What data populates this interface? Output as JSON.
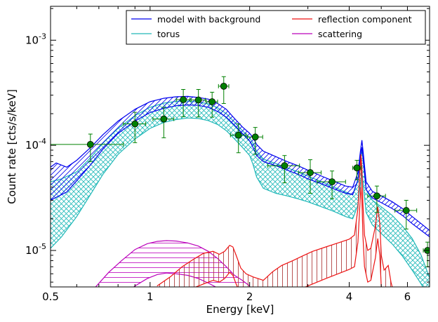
{
  "chart_data": {
    "type": "line",
    "xlabel": "Energy [keV]",
    "ylabel": "Count rate [cts/s/keV]",
    "xscale": "log",
    "yscale": "log",
    "xlim": [
      0.5,
      7.0
    ],
    "ylim": [
      4.5e-06,
      0.0021
    ],
    "xticks": [
      {
        "value": 0.5,
        "label": "0.5"
      },
      {
        "value": 1,
        "label": "1"
      },
      {
        "value": 2,
        "label": "2"
      },
      {
        "value": 4,
        "label": "4"
      },
      {
        "value": 6,
        "label": "6"
      }
    ],
    "yticks": [
      {
        "value": 1e-05,
        "base": "10",
        "exp": "-5"
      },
      {
        "value": 0.0001,
        "base": "10",
        "exp": "-4"
      },
      {
        "value": 0.001,
        "base": "10",
        "exp": "-3"
      }
    ],
    "legend": {
      "placement": "top-right",
      "columns": 2,
      "entries": [
        {
          "label": "model with background",
          "color": "#0000ee"
        },
        {
          "label": "torus",
          "color": "#20b8b8"
        },
        {
          "label": "reflection component",
          "color": "#ee1111"
        },
        {
          "label": "scattering",
          "color": "#bb00bb"
        }
      ]
    },
    "data_points": {
      "color": "#008000",
      "points": [
        {
          "x": 0.66,
          "y": 0.000102,
          "xerr": [
            0.16,
            0.17
          ],
          "yerr": [
            3.2e-05,
            2.6e-05
          ]
        },
        {
          "x": 0.9,
          "y": 0.00016,
          "xerr": [
            0.07,
            0.07
          ],
          "yerr": [
            5.4e-05,
            4.6e-05
          ]
        },
        {
          "x": 1.1,
          "y": 0.000178,
          "xerr": [
            0.08,
            0.08
          ],
          "yerr": [
            6e-05,
            5.2e-05
          ]
        },
        {
          "x": 1.26,
          "y": 0.000272,
          "xerr": [
            0.06,
            0.06
          ],
          "yerr": [
            8.5e-05,
            6.8e-05
          ]
        },
        {
          "x": 1.4,
          "y": 0.00027,
          "xerr": [
            0.07,
            0.07
          ],
          "yerr": [
            8.4e-05,
            7e-05
          ]
        },
        {
          "x": 1.54,
          "y": 0.00026,
          "xerr": [
            0.06,
            0.06
          ],
          "yerr": [
            7.5e-05,
            6e-05
          ]
        },
        {
          "x": 1.67,
          "y": 0.000365,
          "xerr": [
            0.06,
            0.06
          ],
          "yerr": [
            0.000115,
            8.5e-05
          ]
        },
        {
          "x": 1.85,
          "y": 0.000125,
          "xerr": [
            0.1,
            0.1
          ],
          "yerr": [
            4e-05,
            3.5e-05
          ]
        },
        {
          "x": 2.08,
          "y": 0.00012,
          "xerr": [
            0.11,
            0.11
          ],
          "yerr": [
            3.8e-05,
            2.8e-05
          ]
        },
        {
          "x": 2.55,
          "y": 6.4e-05,
          "xerr": [
            0.28,
            0.28
          ],
          "yerr": [
            2e-05,
            1.6e-05
          ]
        },
        {
          "x": 3.05,
          "y": 5.5e-05,
          "xerr": [
            0.24,
            0.24
          ],
          "yerr": [
            2e-05,
            1.8e-05
          ]
        },
        {
          "x": 3.55,
          "y": 4.5e-05,
          "xerr": [
            0.35,
            0.35
          ],
          "yerr": [
            1.4e-05,
            1.2e-05
          ]
        },
        {
          "x": 4.22,
          "y": 6.1e-05,
          "xerr": [
            0.12,
            0.12
          ],
          "yerr": [
            1.4e-05,
            1.1e-05
          ]
        },
        {
          "x": 4.85,
          "y": 3.3e-05,
          "xerr": [
            0.3,
            0.3
          ],
          "yerr": [
            1e-05,
            8e-06
          ]
        },
        {
          "x": 5.95,
          "y": 2.4e-05,
          "xerr": [
            0.45,
            0.45
          ],
          "yerr": [
            8e-06,
            6e-06
          ]
        },
        {
          "x": 6.9,
          "y": 1e-05,
          "xerr": [
            0.2,
            0.2
          ],
          "yerr": [
            3e-06,
            2e-06
          ]
        }
      ]
    },
    "series": [
      {
        "name": "model with background",
        "color": "#0000ee",
        "band": true,
        "x": [
          0.5,
          0.52,
          0.56,
          0.6,
          0.66,
          0.72,
          0.8,
          0.9,
          1.0,
          1.1,
          1.2,
          1.3,
          1.4,
          1.5,
          1.6,
          1.7,
          1.8,
          1.9,
          2.0,
          2.05,
          2.1,
          2.2,
          2.4,
          2.6,
          2.8,
          3.0,
          3.3,
          3.6,
          3.9,
          4.1,
          4.25,
          4.32,
          4.37,
          4.42,
          4.5,
          4.7,
          5.0,
          5.4,
          5.8,
          6.2,
          6.6,
          7.0
        ],
        "upper": [
          6.2e-05,
          6.8e-05,
          6.2e-05,
          7.2e-05,
          9.5e-05,
          0.000126,
          0.00017,
          0.00022,
          0.00026,
          0.00028,
          0.00029,
          0.000292,
          0.000285,
          0.000275,
          0.00025,
          0.00022,
          0.00018,
          0.00015,
          0.00013,
          0.000118,
          0.000102,
          8.8e-05,
          7.8e-05,
          7e-05,
          6.4e-05,
          5.8e-05,
          5.1e-05,
          4.55e-05,
          4.1e-05,
          4e-05,
          5.5e-05,
          8.5e-05,
          0.000112,
          8e-05,
          4.5e-05,
          3.65e-05,
          3.3e-05,
          2.9e-05,
          2.5e-05,
          2.1e-05,
          1.8e-05,
          1.55e-05
        ],
        "lower": [
          3e-05,
          3.2e-05,
          3.6e-05,
          4.6e-05,
          6.5e-05,
          9.2e-05,
          0.00013,
          0.00017,
          0.000205,
          0.000225,
          0.000238,
          0.000242,
          0.00024,
          0.00023,
          0.00021,
          0.000185,
          0.000155,
          0.00013,
          0.00011,
          9.5e-05,
          8e-05,
          7e-05,
          6.4e-05,
          5.8e-05,
          5.3e-05,
          4.8e-05,
          4.3e-05,
          3.85e-05,
          3.5e-05,
          3.4e-05,
          4.7e-05,
          7.3e-05,
          9.6e-05,
          6.8e-05,
          3.8e-05,
          3.15e-05,
          2.85e-05,
          2.5e-05,
          2.15e-05,
          1.8e-05,
          1.55e-05,
          1.35e-05
        ]
      },
      {
        "name": "torus",
        "color": "#20b8b8",
        "band": true,
        "x": [
          0.5,
          0.54,
          0.6,
          0.66,
          0.72,
          0.8,
          0.9,
          1.0,
          1.1,
          1.2,
          1.3,
          1.4,
          1.5,
          1.6,
          1.7,
          1.8,
          1.9,
          2.0,
          2.05,
          2.1,
          2.2,
          2.4,
          2.6,
          2.8,
          3.0,
          3.3,
          3.6,
          3.9,
          4.1,
          4.25,
          4.32,
          4.37,
          4.42,
          4.5,
          4.7,
          5.0,
          5.4,
          5.8,
          6.2,
          6.6,
          7.0
        ],
        "upper": [
          4.5e-05,
          4.8e-05,
          5.6e-05,
          7.6e-05,
          0.000105,
          0.000145,
          0.000192,
          0.00023,
          0.000252,
          0.000262,
          0.000264,
          0.000258,
          0.000248,
          0.000228,
          0.0002,
          0.000166,
          0.000138,
          0.000118,
          0.000104,
          8.8e-05,
          7.4e-05,
          6.7e-05,
          6.1e-05,
          5.6e-05,
          5.1e-05,
          4.5e-05,
          4e-05,
          3.6e-05,
          3.4e-05,
          4.6e-05,
          7e-05,
          9.2e-05,
          6.6e-05,
          3.8e-05,
          3e-05,
          2.6e-05,
          2.15e-05,
          1.7e-05,
          1.3e-05,
          9e-06,
          5.5e-06
        ],
        "lower": [
          1.05e-05,
          1.35e-05,
          2.1e-05,
          3.4e-05,
          5.3e-05,
          8.2e-05,
          0.000115,
          0.000145,
          0.000165,
          0.000176,
          0.000182,
          0.00018,
          0.000172,
          0.000158,
          0.000138,
          0.000115,
          9.6e-05,
          8e-05,
          6.5e-05,
          5e-05,
          3.9e-05,
          3.5e-05,
          3.3e-05,
          3.1e-05,
          2.9e-05,
          2.6e-05,
          2.35e-05,
          2.1e-05,
          2e-05,
          2.7e-05,
          4.2e-05,
          5.6e-05,
          4e-05,
          2.3e-05,
          1.75e-05,
          1.45e-05,
          1.15e-05,
          8.8e-06,
          6.5e-06,
          4.8e-06,
          3.5e-06
        ]
      },
      {
        "name": "reflection component",
        "color": "#ee1111",
        "band": true,
        "x": [
          1.05,
          1.15,
          1.25,
          1.35,
          1.45,
          1.55,
          1.62,
          1.68,
          1.74,
          1.78,
          1.82,
          1.88,
          1.95,
          2.05,
          2.2,
          2.35,
          2.5,
          2.7,
          2.9,
          3.1,
          3.4,
          3.7,
          4.0,
          4.15,
          4.25,
          4.3,
          4.34,
          4.37,
          4.4,
          4.45,
          4.55,
          4.65,
          4.8,
          4.88,
          4.95,
          5.0,
          5.1,
          5.25,
          5.35,
          5.45,
          5.6
        ],
        "upper": [
          4.6e-06,
          5.6e-06,
          7e-06,
          8.2e-06,
          9.4e-06,
          9.8e-06,
          9.2e-06,
          9.8e-06,
          1.12e-05,
          1.08e-05,
          9e-06,
          6.8e-06,
          6e-06,
          5.6e-06,
          5.2e-06,
          6.3e-06,
          7.2e-06,
          8e-06,
          8.9e-06,
          9.8e-06,
          1.08e-05,
          1.18e-05,
          1.28e-05,
          1.4e-05,
          2.5e-05,
          5e-05,
          8.2e-05,
          6e-05,
          2.8e-05,
          1.4e-05,
          1e-05,
          1.05e-05,
          1.7e-05,
          2.6e-05,
          1.8e-05,
          9e-06,
          6.5e-06,
          7.2e-06,
          5e-06,
          4e-06,
          3e-06
        ],
        "lower": [
          3.6e-06,
          3.8e-06,
          4e-06,
          4.4e-06,
          4.8e-06,
          5.2e-06,
          5e-06,
          5.4e-06,
          6.2e-06,
          5.8e-06,
          4.8e-06,
          3.8e-06,
          3.4e-06,
          3.2e-06,
          3e-06,
          3.2e-06,
          3.6e-06,
          4e-06,
          4.4e-06,
          4.8e-06,
          5.4e-06,
          6e-06,
          6.6e-06,
          7e-06,
          1.2e-05,
          2.4e-05,
          4e-05,
          3e-05,
          1.4e-05,
          7e-06,
          5e-06,
          5.2e-06,
          8.5e-06,
          1.3e-05,
          9e-06,
          4.5e-06,
          3.3e-06,
          3.6e-06,
          2.5e-06,
          2e-06,
          1.5e-06
        ]
      },
      {
        "name": "scattering",
        "color": "#bb00bb",
        "band": true,
        "x": [
          0.68,
          0.75,
          0.82,
          0.9,
          0.98,
          1.05,
          1.12,
          1.2,
          1.3,
          1.4,
          1.5,
          1.6,
          1.7,
          1.8,
          1.9,
          2.0
        ],
        "upper": [
          4.4e-06,
          6.2e-06,
          8e-06,
          1.02e-05,
          1.16e-05,
          1.22e-05,
          1.24e-05,
          1.23e-05,
          1.18e-05,
          1.1e-05,
          9.8e-06,
          8.4e-06,
          7e-06,
          5.8e-06,
          5.2e-06,
          4.6e-06
        ],
        "lower": [
          2.5e-06,
          3e-06,
          3.6e-06,
          4.6e-06,
          5.4e-06,
          5.9e-06,
          6.1e-06,
          6e-06,
          5.8e-06,
          5.4e-06,
          4.9e-06,
          4.4e-06,
          3.8e-06,
          3.2e-06,
          2.8e-06,
          2.5e-06
        ]
      }
    ]
  }
}
